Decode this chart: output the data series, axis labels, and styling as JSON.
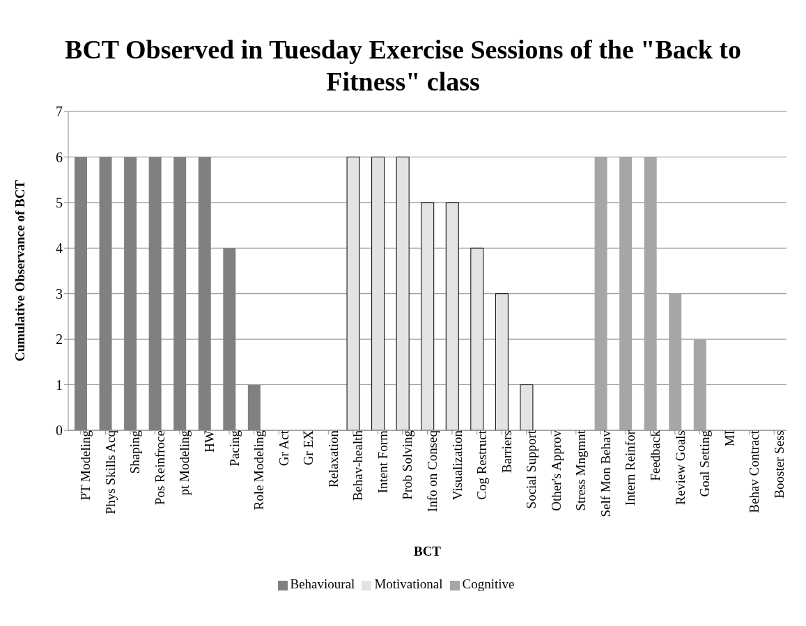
{
  "chart_data": {
    "type": "bar",
    "title": "BCT Observed in Tuesday Exercise Sessions of the \"Back to Fitness\" class",
    "xlabel": "BCT",
    "ylabel": "Cumulative Observance of BCT",
    "categories": [
      "PT Modeling",
      "Phys Skills Acq",
      "Shaping",
      "Pos Reinfroce",
      "pt Modeling",
      "HW",
      "Pacing",
      "Role Modeling",
      "Gr Act",
      "Gr EX",
      "Relaxation",
      "Behav-health",
      "Intent Form",
      "Prob Solving",
      "Info on Conseq",
      "Visualization",
      "Cog Restruct",
      "Barriers",
      "Social Support",
      "Other's Approv",
      "Stress Mngmnt",
      "Self Mon Behav",
      "Intern Reinfor",
      "Feedback",
      "Review Goals",
      "Goal Setting",
      "MI",
      "Behav Contract",
      "Booster Sess"
    ],
    "series": [
      {
        "name": "Behavioural",
        "color": "#808080",
        "values": [
          6,
          6,
          6,
          6,
          6,
          6,
          4,
          1,
          0,
          0,
          0,
          null,
          null,
          null,
          null,
          null,
          null,
          null,
          null,
          null,
          null,
          null,
          null,
          null,
          null,
          null,
          null,
          null,
          null
        ]
      },
      {
        "name": "Motivational",
        "color": "#e3e3e3",
        "values": [
          null,
          null,
          null,
          null,
          null,
          null,
          null,
          null,
          null,
          null,
          null,
          6,
          6,
          6,
          5,
          5,
          4,
          3,
          1,
          0,
          0,
          null,
          null,
          null,
          null,
          null,
          null,
          null,
          null
        ]
      },
      {
        "name": "Cognitive",
        "color": "#a6a6a6",
        "values": [
          null,
          null,
          null,
          null,
          null,
          null,
          null,
          null,
          null,
          null,
          null,
          null,
          null,
          null,
          null,
          null,
          null,
          null,
          null,
          null,
          null,
          6,
          6,
          6,
          3,
          2,
          0,
          0,
          0
        ]
      }
    ],
    "stacked": true,
    "ylim": [
      0,
      7
    ],
    "yticks": [
      0,
      1,
      2,
      3,
      4,
      5,
      6,
      7
    ],
    "grid": "y",
    "legend": "bottom"
  }
}
